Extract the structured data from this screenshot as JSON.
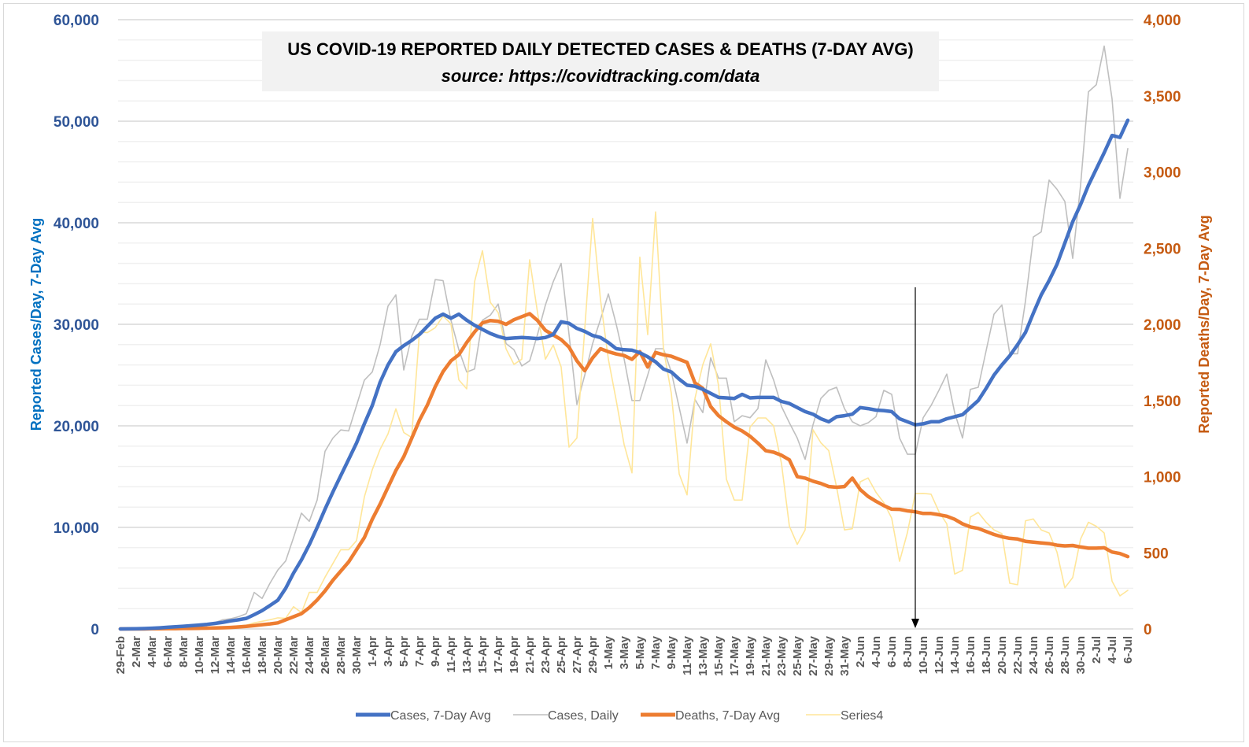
{
  "chart_data": {
    "type": "line",
    "title": "US COVID-19 REPORTED DAILY DETECTED CASES & DEATHS (7-DAY AVG)",
    "subtitle": "source: https://covidtracking.com/data",
    "ylabel": "Reported Cases/Day, 7-Day Avg",
    "y2label": "Reported Deaths/Day, 7-Day Avg",
    "ylim": [
      0,
      60000
    ],
    "y2lim": [
      0,
      4000
    ],
    "yticks": [
      "0",
      "10,000",
      "20,000",
      "30,000",
      "40,000",
      "50,000",
      "60,000"
    ],
    "y2ticks": [
      "0",
      "500",
      "1,000",
      "1,500",
      "2,000",
      "2,500",
      "3,000",
      "3,500",
      "4,000"
    ],
    "grid": true,
    "legend_position": "bottom",
    "tick_labels": [
      "29-Feb",
      "2-Mar",
      "4-Mar",
      "6-Mar",
      "8-Mar",
      "10-Mar",
      "12-Mar",
      "14-Mar",
      "16-Mar",
      "18-Mar",
      "20-Mar",
      "22-Mar",
      "24-Mar",
      "26-Mar",
      "28-Mar",
      "30-Mar",
      "1-Apr",
      "3-Apr",
      "5-Apr",
      "7-Apr",
      "9-Apr",
      "11-Apr",
      "13-Apr",
      "15-Apr",
      "17-Apr",
      "19-Apr",
      "21-Apr",
      "23-Apr",
      "25-Apr",
      "27-Apr",
      "29-Apr",
      "1-May",
      "3-May",
      "5-May",
      "7-May",
      "9-May",
      "11-May",
      "13-May",
      "15-May",
      "17-May",
      "19-May",
      "21-May",
      "23-May",
      "25-May",
      "27-May",
      "29-May",
      "31-May",
      "2-Jun",
      "4-Jun",
      "6-Jun",
      "8-Jun",
      "10-Jun",
      "12-Jun",
      "14-Jun",
      "16-Jun",
      "18-Jun",
      "20-Jun",
      "22-Jun",
      "24-Jun",
      "26-Jun",
      "28-Jun",
      "30-Jun",
      "2-Jul",
      "4-Jul",
      "6-Jul"
    ],
    "annotation": {
      "type": "arrow",
      "at": "9-Jun"
    },
    "series": [
      {
        "name": "Cases, 7-Day Avg",
        "axis": "left",
        "color": "#4472c4",
        "values": [
          0,
          10,
          20,
          40,
          70,
          110,
          160,
          210,
          260,
          320,
          380,
          450,
          540,
          640,
          790,
          900,
          1040,
          1400,
          1800,
          2300,
          2830,
          4000,
          5500,
          6800,
          8300,
          10000,
          11800,
          13500,
          15100,
          16700,
          18300,
          20200,
          22000,
          24300,
          26000,
          27300,
          27900,
          28400,
          29000,
          29800,
          30600,
          31000,
          30600,
          31000,
          30400,
          29900,
          29500,
          29100,
          28800,
          28600,
          28650,
          28700,
          28650,
          28600,
          28700,
          29000,
          30250,
          30100,
          29600,
          29300,
          28900,
          28700,
          28200,
          27600,
          27500,
          27450,
          27200,
          26800,
          26300,
          25600,
          25300,
          24600,
          24000,
          23900,
          23600,
          23200,
          22800,
          22750,
          22700,
          23100,
          22750,
          22800,
          22800,
          22800,
          22400,
          22200,
          21800,
          21400,
          21150,
          20700,
          20400,
          20900,
          21000,
          21150,
          21800,
          21700,
          21550,
          21500,
          21400,
          20700,
          20400,
          20100,
          20200,
          20400,
          20400,
          20700,
          20900,
          21100,
          21800,
          22500,
          23700,
          25000,
          26000,
          26900,
          28000,
          29200,
          31100,
          32900,
          34300,
          35900,
          38000,
          40100,
          41800,
          43700,
          45300,
          46900,
          48600,
          48400,
          50100
        ]
      },
      {
        "name": "Cases, Daily",
        "axis": "left",
        "color": "#bfbfbf",
        "values": [
          0,
          20,
          30,
          60,
          80,
          120,
          180,
          230,
          290,
          360,
          420,
          500,
          620,
          900,
          1000,
          1200,
          1500,
          3600,
          3000,
          4500,
          5800,
          6700,
          9000,
          11400,
          10600,
          12700,
          17500,
          18800,
          19600,
          19500,
          22000,
          24500,
          25300,
          28000,
          31800,
          32900,
          25500,
          28800,
          30500,
          30500,
          34400,
          34300,
          30400,
          27500,
          25300,
          25600,
          30400,
          30900,
          32000,
          28100,
          27500,
          25900,
          26400,
          29000,
          31900,
          34200,
          36000,
          29000,
          22100,
          25000,
          28100,
          30500,
          33000,
          30000,
          26600,
          22500,
          22500,
          25000,
          27600,
          27600,
          25300,
          21800,
          18300,
          22600,
          21300,
          26700,
          24700,
          24700,
          20400,
          21000,
          20800,
          21700,
          26500,
          24500,
          21900,
          20300,
          18800,
          16700,
          20100,
          22700,
          23500,
          23800,
          21700,
          20400,
          20000,
          20300,
          20900,
          23500,
          23100,
          18800,
          17200,
          17200,
          20800,
          22000,
          23500,
          25100,
          21300,
          18800,
          23600,
          23800,
          27400,
          31000,
          31900,
          27100,
          27100,
          32300,
          38600,
          39100,
          44200,
          43300,
          42100,
          36500,
          43700,
          52900,
          53600,
          57400,
          52200,
          42400,
          47300
        ]
      },
      {
        "name": "Deaths, 7-Day Avg",
        "axis": "right",
        "color": "#ed7d31",
        "values": [
          0,
          0,
          0,
          0,
          1,
          1,
          2,
          2,
          3,
          3,
          4,
          5,
          6,
          8,
          10,
          13,
          17,
          22,
          28,
          33,
          40,
          60,
          80,
          100,
          140,
          190,
          250,
          320,
          380,
          440,
          520,
          600,
          720,
          820,
          930,
          1040,
          1130,
          1250,
          1370,
          1470,
          1590,
          1690,
          1760,
          1800,
          1880,
          1950,
          2010,
          2025,
          2020,
          2000,
          2030,
          2050,
          2070,
          2025,
          1960,
          1930,
          1900,
          1850,
          1760,
          1695,
          1780,
          1840,
          1820,
          1805,
          1795,
          1770,
          1820,
          1720,
          1815,
          1800,
          1790,
          1770,
          1750,
          1615,
          1580,
          1460,
          1400,
          1360,
          1325,
          1300,
          1265,
          1220,
          1170,
          1160,
          1140,
          1110,
          1000,
          990,
          970,
          955,
          935,
          930,
          935,
          990,
          915,
          870,
          838,
          810,
          786,
          785,
          775,
          769,
          758,
          758,
          750,
          740,
          720,
          690,
          670,
          660,
          640,
          620,
          605,
          595,
          590,
          575,
          570,
          565,
          560,
          550,
          545,
          548,
          538,
          530,
          530,
          533,
          505,
          495,
          475
        ]
      },
      {
        "name": "Series4",
        "axis": "right",
        "color": "#ffe699",
        "values": [
          0,
          0,
          0,
          0,
          1,
          2,
          2,
          3,
          4,
          5,
          6,
          8,
          10,
          12,
          15,
          20,
          25,
          40,
          50,
          60,
          73,
          70,
          146,
          107,
          240,
          240,
          340,
          430,
          520,
          520,
          580,
          867,
          1045,
          1180,
          1280,
          1445,
          1290,
          1257,
          1950,
          1945,
          1978,
          2055,
          2003,
          1635,
          1576,
          2280,
          2483,
          2144,
          2077,
          1839,
          1737,
          1771,
          2424,
          2077,
          1771,
          1864,
          1720,
          1194,
          1253,
          1970,
          2695,
          2161,
          1771,
          1500,
          1211,
          1025,
          2441,
          1932,
          2738,
          1839,
          1547,
          1017,
          880,
          1513,
          1735,
          1872,
          1598,
          983,
          846,
          846,
          1325,
          1385,
          1385,
          1333,
          1085,
          675,
          555,
          650,
          1308,
          1222,
          1171,
          931,
          650,
          658,
          966,
          991,
          897,
          829,
          727,
          444,
          633,
          889,
          890,
          885,
          770,
          690,
          360,
          385,
          735,
          765,
          700,
          650,
          626,
          300,
          290,
          710,
          722,
          650,
          630,
          505,
          270,
          337,
          590,
          700,
          674,
          630,
          313,
          217,
          253
        ]
      }
    ]
  }
}
